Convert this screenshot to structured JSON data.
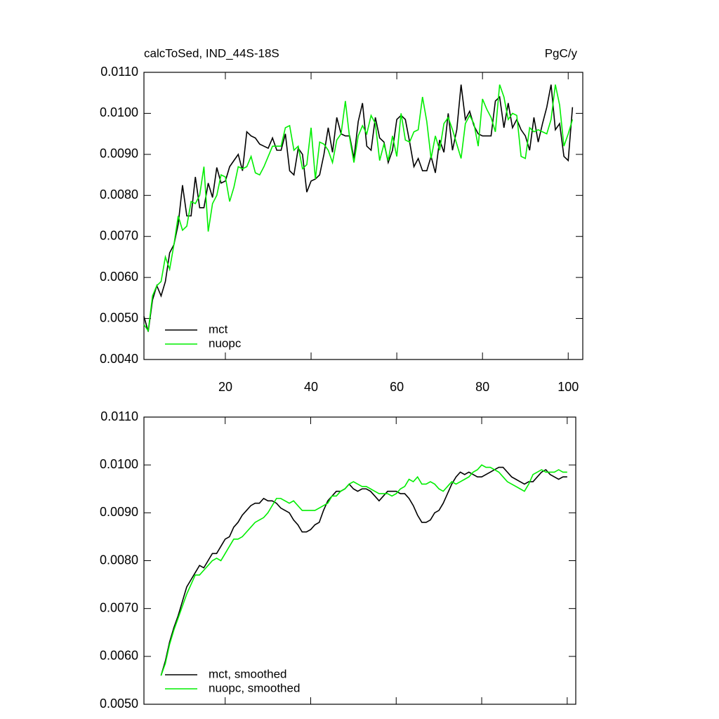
{
  "chart_data": [
    {
      "type": "line",
      "title": "calcToSed, IND_44S-18S",
      "units": "PgC/y",
      "x": [
        1,
        2,
        3,
        4,
        5,
        6,
        7,
        8,
        9,
        10,
        11,
        12,
        13,
        14,
        15,
        16,
        17,
        18,
        19,
        20,
        21,
        22,
        23,
        24,
        25,
        26,
        27,
        28,
        29,
        30,
        31,
        32,
        33,
        34,
        35,
        36,
        37,
        38,
        39,
        40,
        41,
        42,
        43,
        44,
        45,
        46,
        47,
        48,
        49,
        50,
        51,
        52,
        53,
        54,
        55,
        56,
        57,
        58,
        59,
        60,
        61,
        62,
        63,
        64,
        65,
        66,
        67,
        68,
        69,
        70,
        71,
        72,
        73,
        74,
        75,
        76,
        77,
        78,
        79,
        80,
        81,
        82,
        83,
        84,
        85,
        86,
        87,
        88,
        89,
        90,
        91,
        92,
        93,
        94,
        95,
        96,
        97,
        98,
        99,
        100,
        101
      ],
      "series": [
        {
          "name": "mct",
          "color": "#000000",
          "values": [
            0.00505,
            0.00468,
            0.00545,
            0.0058,
            0.00555,
            0.0059,
            0.0066,
            0.0068,
            0.0073,
            0.00825,
            0.0075,
            0.0075,
            0.00845,
            0.0077,
            0.0077,
            0.0083,
            0.00795,
            0.00868,
            0.0083,
            0.00835,
            0.0087,
            0.00885,
            0.009,
            0.0086,
            0.00955,
            0.00945,
            0.0094,
            0.00925,
            0.0092,
            0.00915,
            0.0094,
            0.0091,
            0.0091,
            0.0095,
            0.0086,
            0.0085,
            0.00915,
            0.009,
            0.00808,
            0.00835,
            0.0084,
            0.0085,
            0.009,
            0.00965,
            0.00905,
            0.0099,
            0.0095,
            0.00945,
            0.00945,
            0.0089,
            0.0098,
            0.01025,
            0.0092,
            0.0091,
            0.0099,
            0.0094,
            0.0093,
            0.0088,
            0.0091,
            0.00985,
            0.00995,
            0.00985,
            0.0093,
            0.0087,
            0.0089,
            0.0086,
            0.0086,
            0.00895,
            0.00855,
            0.00935,
            0.00905,
            0.01,
            0.0091,
            0.0096,
            0.0107,
            0.00985,
            0.01005,
            0.0097,
            0.0095,
            0.00945,
            0.00945,
            0.00945,
            0.0103,
            0.0104,
            0.00965,
            0.01025,
            0.00965,
            0.00985,
            0.0096,
            0.00945,
            0.0091,
            0.0099,
            0.0093,
            0.00975,
            0.01015,
            0.0107,
            0.0096,
            0.00975,
            0.00895,
            0.00885,
            0.01015
          ]
        },
        {
          "name": "nuopc",
          "color": "#00ee00",
          "values": [
            0.00485,
            0.0047,
            0.00555,
            0.0058,
            0.0059,
            0.0065,
            0.0062,
            0.0068,
            0.0075,
            0.00715,
            0.00725,
            0.00785,
            0.0078,
            0.008,
            0.0087,
            0.00712,
            0.0078,
            0.008,
            0.0085,
            0.00845,
            0.00785,
            0.0082,
            0.0087,
            0.00865,
            0.0087,
            0.00895,
            0.00855,
            0.0085,
            0.0087,
            0.00895,
            0.0092,
            0.0092,
            0.0092,
            0.00965,
            0.0097,
            0.0091,
            0.0092,
            0.00865,
            0.00875,
            0.00965,
            0.0084,
            0.0093,
            0.00925,
            0.0091,
            0.0088,
            0.00935,
            0.0095,
            0.0103,
            0.0094,
            0.0088,
            0.00945,
            0.0097,
            0.0095,
            0.00995,
            0.00975,
            0.00885,
            0.00925,
            0.00885,
            0.00945,
            0.00895,
            0.01,
            0.00935,
            0.0093,
            0.00955,
            0.0096,
            0.0104,
            0.0098,
            0.0089,
            0.00945,
            0.0091,
            0.00975,
            0.0099,
            0.0096,
            0.00925,
            0.0089,
            0.00975,
            0.00995,
            0.00975,
            0.0092,
            0.01035,
            0.0101,
            0.0099,
            0.00955,
            0.0107,
            0.0104,
            0.00985,
            0.01,
            0.00995,
            0.00895,
            0.0089,
            0.00965,
            0.00955,
            0.0096,
            0.00955,
            0.0095,
            0.00985,
            0.0107,
            0.0102,
            0.0092,
            0.0095,
            0.00985
          ]
        }
      ],
      "xlim": [
        1,
        103.4
      ],
      "xticks": [
        20,
        40,
        60,
        80,
        100
      ],
      "ylim": [
        0.004,
        0.011
      ],
      "yticks": [
        {
          "value": 0.004,
          "label": "0.0040"
        },
        {
          "value": 0.005,
          "label": "0.0050"
        },
        {
          "value": 0.006,
          "label": "0.0060"
        },
        {
          "value": 0.007,
          "label": "0.0070"
        },
        {
          "value": 0.008,
          "label": "0.0080"
        },
        {
          "value": 0.009,
          "label": "0.0090"
        },
        {
          "value": 0.01,
          "label": "0.0100"
        },
        {
          "value": 0.011,
          "label": "0.0110"
        }
      ],
      "xtick_labels": true,
      "legend": "lower left"
    },
    {
      "type": "line",
      "x": [
        5,
        6,
        7,
        8,
        9,
        10,
        11,
        12,
        13,
        14,
        15,
        16,
        17,
        18,
        19,
        20,
        21,
        22,
        23,
        24,
        25,
        26,
        27,
        28,
        29,
        30,
        31,
        32,
        33,
        34,
        35,
        36,
        37,
        38,
        39,
        40,
        41,
        42,
        43,
        44,
        45,
        46,
        47,
        48,
        49,
        50,
        51,
        52,
        53,
        54,
        55,
        56,
        57,
        58,
        59,
        60,
        61,
        62,
        63,
        64,
        65,
        66,
        67,
        68,
        69,
        70,
        71,
        72,
        73,
        74,
        75,
        76,
        77,
        78,
        79,
        80,
        81,
        82,
        83,
        84,
        85,
        86,
        87,
        88,
        89,
        90,
        91,
        92,
        93,
        94,
        95,
        96,
        97,
        98,
        99,
        100
      ],
      "series": [
        {
          "name": "mct, smoothed",
          "color": "#000000",
          "values": [
            0.0056,
            0.0059,
            0.0063,
            0.0066,
            0.00685,
            0.00715,
            0.00745,
            0.0076,
            0.00775,
            0.0079,
            0.00785,
            0.008,
            0.00815,
            0.00815,
            0.0083,
            0.00845,
            0.0085,
            0.0087,
            0.0088,
            0.00895,
            0.00905,
            0.00915,
            0.0092,
            0.0092,
            0.0093,
            0.00925,
            0.00925,
            0.0092,
            0.0091,
            0.00905,
            0.009,
            0.00885,
            0.00875,
            0.0086,
            0.0086,
            0.00865,
            0.00875,
            0.0088,
            0.00905,
            0.00925,
            0.00935,
            0.00945,
            0.00945,
            0.0095,
            0.0096,
            0.0095,
            0.00945,
            0.0095,
            0.0095,
            0.00945,
            0.00935,
            0.00925,
            0.00935,
            0.00945,
            0.00945,
            0.00945,
            0.0094,
            0.0094,
            0.0093,
            0.00915,
            0.00895,
            0.0088,
            0.0088,
            0.00885,
            0.009,
            0.00905,
            0.0092,
            0.0094,
            0.0096,
            0.00975,
            0.00985,
            0.0098,
            0.00985,
            0.0098,
            0.00975,
            0.00975,
            0.0098,
            0.00985,
            0.0099,
            0.00995,
            0.00995,
            0.00985,
            0.00975,
            0.0097,
            0.00965,
            0.0096,
            0.00965,
            0.00965,
            0.00975,
            0.00985,
            0.0099,
            0.0098,
            0.00975,
            0.0097,
            0.00975,
            0.00975
          ]
        },
        {
          "name": "nuopc, smoothed",
          "color": "#00ee00",
          "values": [
            0.0056,
            0.00585,
            0.00625,
            0.00655,
            0.0068,
            0.00705,
            0.0073,
            0.0075,
            0.0077,
            0.0077,
            0.0078,
            0.0079,
            0.008,
            0.00805,
            0.008,
            0.00815,
            0.0083,
            0.00845,
            0.00845,
            0.0085,
            0.0086,
            0.0087,
            0.0088,
            0.00885,
            0.0089,
            0.009,
            0.00915,
            0.0093,
            0.0093,
            0.00925,
            0.0092,
            0.00925,
            0.00915,
            0.00905,
            0.00905,
            0.00905,
            0.00905,
            0.0091,
            0.00915,
            0.0092,
            0.00935,
            0.00935,
            0.00945,
            0.0095,
            0.0096,
            0.00965,
            0.0096,
            0.00955,
            0.00955,
            0.0095,
            0.00945,
            0.0094,
            0.0094,
            0.0094,
            0.00935,
            0.0094,
            0.0095,
            0.00955,
            0.0097,
            0.00965,
            0.00975,
            0.0096,
            0.0096,
            0.00965,
            0.0096,
            0.0095,
            0.00945,
            0.00955,
            0.00965,
            0.0096,
            0.00965,
            0.0097,
            0.00975,
            0.00985,
            0.0099,
            0.01,
            0.00995,
            0.00995,
            0.0099,
            0.00985,
            0.00975,
            0.00965,
            0.0096,
            0.00955,
            0.0095,
            0.00945,
            0.0096,
            0.0098,
            0.00985,
            0.0099,
            0.00985,
            0.00985,
            0.00985,
            0.0099,
            0.00985,
            0.00985
          ]
        }
      ],
      "xlim": [
        1,
        102
      ],
      "xticks": [
        20,
        40,
        60,
        80,
        100
      ],
      "ylim": [
        0.005,
        0.011
      ],
      "yticks": [
        {
          "value": 0.005,
          "label": "0.0050"
        },
        {
          "value": 0.006,
          "label": "0.0060"
        },
        {
          "value": 0.007,
          "label": "0.0070"
        },
        {
          "value": 0.008,
          "label": "0.0080"
        },
        {
          "value": 0.009,
          "label": "0.0090"
        },
        {
          "value": 0.01,
          "label": "0.0100"
        },
        {
          "value": 0.011,
          "label": "0.0110"
        }
      ],
      "xtick_labels": false,
      "legend": "lower left"
    }
  ]
}
